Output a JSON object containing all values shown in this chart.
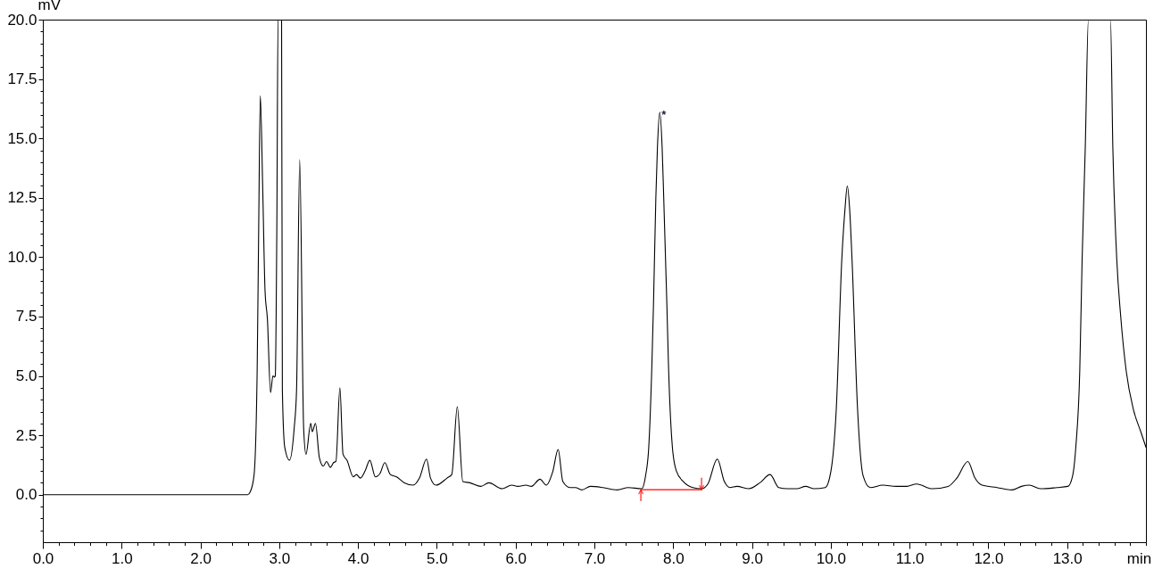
{
  "chart_data": {
    "type": "line",
    "xlabel": "min",
    "ylabel": "mV",
    "xlim": [
      0,
      14
    ],
    "ylim": [
      -2,
      20
    ],
    "xticks": [
      {
        "value": 0,
        "label": "0.0"
      },
      {
        "value": 0.2,
        "label": null
      },
      {
        "value": 0.4,
        "label": null
      },
      {
        "value": 0.6,
        "label": null
      },
      {
        "value": 0.8,
        "label": null
      },
      {
        "value": 1,
        "label": "1.0"
      },
      {
        "value": 1.2,
        "label": null
      },
      {
        "value": 1.4,
        "label": null
      },
      {
        "value": 1.6,
        "label": null
      },
      {
        "value": 1.8,
        "label": null
      },
      {
        "value": 2,
        "label": "2.0"
      },
      {
        "value": 2.2,
        "label": null
      },
      {
        "value": 2.4,
        "label": null
      },
      {
        "value": 2.6,
        "label": null
      },
      {
        "value": 2.8,
        "label": null
      },
      {
        "value": 3,
        "label": "3.0"
      },
      {
        "value": 3.2,
        "label": null
      },
      {
        "value": 3.4,
        "label": null
      },
      {
        "value": 3.6,
        "label": null
      },
      {
        "value": 3.8,
        "label": null
      },
      {
        "value": 4,
        "label": "4.0"
      },
      {
        "value": 4.2,
        "label": null
      },
      {
        "value": 4.4,
        "label": null
      },
      {
        "value": 4.6,
        "label": null
      },
      {
        "value": 4.8,
        "label": null
      },
      {
        "value": 5,
        "label": "5.0"
      },
      {
        "value": 5.2,
        "label": null
      },
      {
        "value": 5.4,
        "label": null
      },
      {
        "value": 5.6,
        "label": null
      },
      {
        "value": 5.8,
        "label": null
      },
      {
        "value": 6,
        "label": "6.0"
      },
      {
        "value": 6.2,
        "label": null
      },
      {
        "value": 6.4,
        "label": null
      },
      {
        "value": 6.6,
        "label": null
      },
      {
        "value": 6.8,
        "label": null
      },
      {
        "value": 7,
        "label": "7.0"
      },
      {
        "value": 7.2,
        "label": null
      },
      {
        "value": 7.4,
        "label": null
      },
      {
        "value": 7.6,
        "label": null
      },
      {
        "value": 7.8,
        "label": null
      },
      {
        "value": 8,
        "label": "8.0"
      },
      {
        "value": 8.2,
        "label": null
      },
      {
        "value": 8.4,
        "label": null
      },
      {
        "value": 8.6,
        "label": null
      },
      {
        "value": 8.8,
        "label": null
      },
      {
        "value": 9,
        "label": "9.0"
      },
      {
        "value": 9.2,
        "label": null
      },
      {
        "value": 9.4,
        "label": null
      },
      {
        "value": 9.6,
        "label": null
      },
      {
        "value": 9.8,
        "label": null
      },
      {
        "value": 10,
        "label": "10.0"
      },
      {
        "value": 10.2,
        "label": null
      },
      {
        "value": 10.4,
        "label": null
      },
      {
        "value": 10.6,
        "label": null
      },
      {
        "value": 10.8,
        "label": null
      },
      {
        "value": 11,
        "label": "11.0"
      },
      {
        "value": 11.2,
        "label": null
      },
      {
        "value": 11.4,
        "label": null
      },
      {
        "value": 11.6,
        "label": null
      },
      {
        "value": 11.8,
        "label": null
      },
      {
        "value": 12,
        "label": "12.0"
      },
      {
        "value": 12.2,
        "label": null
      },
      {
        "value": 12.4,
        "label": null
      },
      {
        "value": 12.6,
        "label": null
      },
      {
        "value": 12.8,
        "label": null
      },
      {
        "value": 13,
        "label": "13.0"
      },
      {
        "value": 13.2,
        "label": null
      },
      {
        "value": 13.4,
        "label": null
      },
      {
        "value": 13.6,
        "label": null
      },
      {
        "value": 13.8,
        "label": null
      },
      {
        "value": 14,
        "label": null
      }
    ],
    "yticks": [
      {
        "value": -1.5,
        "label": null
      },
      {
        "value": -1,
        "label": null
      },
      {
        "value": -0.5,
        "label": null
      },
      {
        "value": 0,
        "label": "0.0"
      },
      {
        "value": 0.5,
        "label": null
      },
      {
        "value": 1,
        "label": null
      },
      {
        "value": 1.5,
        "label": null
      },
      {
        "value": 2,
        "label": null
      },
      {
        "value": 2.5,
        "label": "2.5"
      },
      {
        "value": 3,
        "label": null
      },
      {
        "value": 3.5,
        "label": null
      },
      {
        "value": 4,
        "label": null
      },
      {
        "value": 4.5,
        "label": null
      },
      {
        "value": 5,
        "label": "5.0"
      },
      {
        "value": 5.5,
        "label": null
      },
      {
        "value": 6,
        "label": null
      },
      {
        "value": 6.5,
        "label": null
      },
      {
        "value": 7,
        "label": null
      },
      {
        "value": 7.5,
        "label": "7.5"
      },
      {
        "value": 8,
        "label": null
      },
      {
        "value": 8.5,
        "label": null
      },
      {
        "value": 9,
        "label": null
      },
      {
        "value": 9.5,
        "label": null
      },
      {
        "value": 10,
        "label": "10.0"
      },
      {
        "value": 10.5,
        "label": null
      },
      {
        "value": 11,
        "label": null
      },
      {
        "value": 11.5,
        "label": null
      },
      {
        "value": 12,
        "label": null
      },
      {
        "value": 12.5,
        "label": "12.5"
      },
      {
        "value": 13,
        "label": null
      },
      {
        "value": 13.5,
        "label": null
      },
      {
        "value": 14,
        "label": null
      },
      {
        "value": 14.5,
        "label": null
      },
      {
        "value": 15,
        "label": "15.0"
      },
      {
        "value": 15.5,
        "label": null
      },
      {
        "value": 16,
        "label": null
      },
      {
        "value": 16.5,
        "label": null
      },
      {
        "value": 17,
        "label": null
      },
      {
        "value": 17.5,
        "label": "17.5"
      },
      {
        "value": 18,
        "label": null
      },
      {
        "value": 18.5,
        "label": null
      },
      {
        "value": 19,
        "label": null
      },
      {
        "value": 19.5,
        "label": null
      },
      {
        "value": 20,
        "label": "20.0"
      }
    ],
    "annotations": [
      {
        "text": "*",
        "x": 7.83,
        "y": 16.1
      }
    ],
    "series": [
      {
        "color": "#000000",
        "x": [
          0,
          2.6,
          2.63,
          2.68,
          2.72,
          2.74,
          2.76,
          2.79,
          2.82,
          2.85,
          2.89,
          2.92,
          2.94,
          2.95,
          2.97,
          2.985,
          3.03,
          3.04,
          3.07,
          3.13,
          3.19,
          3.22,
          3.26,
          3.31,
          3.34,
          3.4,
          3.42,
          3.46,
          3.51,
          3.56,
          3.6,
          3.65,
          3.69,
          3.72,
          3.77,
          3.81,
          3.86,
          3.94,
          3.98,
          4.03,
          4.09,
          4.15,
          4.22,
          4.28,
          4.34,
          4.41,
          4.49,
          4.59,
          4.7,
          4.78,
          4.87,
          4.92,
          4.99,
          5.13,
          5.19,
          5.26,
          5.33,
          5.42,
          5.56,
          5.66,
          5.83,
          5.95,
          6.03,
          6.13,
          6.2,
          6.31,
          6.39,
          6.47,
          6.54,
          6.6,
          6.69,
          6.76,
          6.84,
          6.95,
          7.11,
          7.29,
          7.43,
          7.6,
          7.65,
          7.69,
          7.73,
          7.75,
          7.78,
          7.8,
          7.83,
          7.86,
          7.88,
          7.92,
          7.94,
          7.99,
          8.04,
          8.13,
          8.25,
          8.36,
          8.44,
          8.56,
          8.65,
          8.72,
          8.81,
          8.96,
          9.1,
          9.23,
          9.34,
          9.45,
          9.57,
          9.68,
          9.79,
          9.93,
          10.0,
          10.07,
          10.14,
          10.18,
          10.21,
          10.24,
          10.27,
          10.34,
          10.41,
          10.5,
          10.66,
          10.83,
          10.96,
          11.09,
          11.29,
          11.49,
          11.6,
          11.74,
          11.83,
          11.92,
          12.11,
          12.3,
          12.42,
          12.52,
          12.66,
          12.87,
          13.01,
          13.07,
          13.11,
          13.16,
          13.19,
          13.23,
          13.27,
          13.55,
          13.58,
          13.63,
          13.68,
          13.75,
          13.84,
          13.94,
          14.0
        ],
        "values": [
          0,
          0,
          0.1,
          0.8,
          5.2,
          11.4,
          16.8,
          13.0,
          8.6,
          7.4,
          4.3,
          5.0,
          4.95,
          5.0,
          11.4,
          20,
          20,
          4.4,
          2.0,
          1.45,
          2.8,
          4.4,
          14.1,
          2.8,
          1.7,
          3.0,
          2.65,
          3.0,
          1.55,
          1.2,
          1.4,
          1.15,
          1.35,
          1.4,
          4.5,
          1.7,
          1.45,
          0.75,
          0.85,
          0.7,
          1.0,
          1.45,
          0.75,
          0.9,
          1.35,
          0.85,
          0.75,
          0.5,
          0.4,
          0.7,
          1.5,
          0.7,
          0.4,
          0.7,
          0.85,
          3.7,
          0.55,
          0.5,
          0.35,
          0.5,
          0.25,
          0.4,
          0.35,
          0.4,
          0.35,
          0.65,
          0.4,
          0.95,
          1.9,
          0.55,
          0.3,
          0.3,
          0.2,
          0.35,
          0.3,
          0.2,
          0.3,
          0.25,
          0.8,
          2.0,
          5.5,
          8.0,
          12.5,
          14.6,
          16.1,
          14.6,
          12.5,
          8.0,
          5.5,
          2.0,
          1.0,
          0.55,
          0.3,
          0.25,
          0.45,
          1.5,
          0.55,
          0.3,
          0.35,
          0.25,
          0.5,
          0.85,
          0.3,
          0.25,
          0.25,
          0.35,
          0.25,
          0.3,
          0.95,
          3.6,
          9.9,
          12.0,
          13.0,
          12.0,
          9.9,
          3.6,
          0.8,
          0.3,
          0.4,
          0.35,
          0.35,
          0.45,
          0.25,
          0.35,
          0.7,
          1.4,
          0.7,
          0.4,
          0.3,
          0.2,
          0.35,
          0.4,
          0.25,
          0.3,
          0.35,
          0.8,
          2.0,
          5.2,
          9.9,
          14.6,
          20,
          20,
          14.6,
          9.9,
          7.5,
          5.2,
          3.6,
          2.6,
          2.0
        ]
      },
      {
        "color": "#ff0000",
        "x": [
          7.59,
          7.59,
          8.36,
          8.36
        ],
        "values": [
          -0.25,
          0.21,
          0.21,
          0.7
        ]
      }
    ]
  }
}
